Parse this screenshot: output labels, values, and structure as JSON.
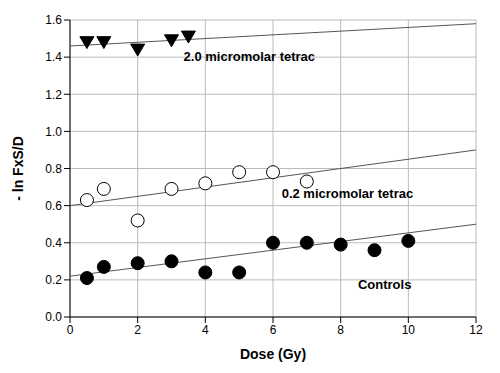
{
  "chart_data": {
    "type": "scatter",
    "x_label": "Dose (Gy)",
    "y_label": "- ln FxS/D",
    "xlim": [
      0,
      12
    ],
    "ylim": [
      0,
      1.6
    ],
    "xticks": [
      0,
      2,
      4,
      6,
      8,
      10,
      12
    ],
    "yticks": [
      {
        "value": 0,
        "label": "0.0"
      },
      {
        "value": 0.2,
        "label": "0.2"
      },
      {
        "value": 0.4,
        "label": "0.4"
      },
      {
        "value": 0.6,
        "label": "0.6"
      },
      {
        "value": 0.8,
        "label": "0.8"
      },
      {
        "value": 1,
        "label": "1.0"
      },
      {
        "value": 1.2,
        "label": "1.2"
      },
      {
        "value": 1.4,
        "label": "1.4"
      },
      {
        "value": 1.6,
        "label": "1.6"
      }
    ],
    "grid": true,
    "series": [
      {
        "name": "2.0 micromolar tetrac",
        "color": "#000000",
        "marker": "triangle-down",
        "x": [
          0.5,
          1,
          2,
          3,
          3.5
        ],
        "values": [
          1.48,
          1.48,
          1.44,
          1.49,
          1.51
        ],
        "trend": {
          "color": "#555555",
          "x": [
            0,
            12
          ],
          "values": [
            1.46,
            1.58
          ]
        }
      },
      {
        "name": "0.2 micromolar tetrac",
        "color": "#000000",
        "marker": "circle-open",
        "x": [
          0.5,
          1,
          2,
          3,
          4,
          5,
          6,
          7
        ],
        "values": [
          0.63,
          0.69,
          0.52,
          0.69,
          0.72,
          0.78,
          0.78,
          0.73
        ],
        "trend": {
          "color": "#555555",
          "x": [
            0,
            12
          ],
          "values": [
            0.6,
            0.9
          ]
        }
      },
      {
        "name": "Controls",
        "color": "#000000",
        "marker": "circle",
        "x": [
          0.5,
          1,
          2,
          3,
          4,
          5,
          6,
          7,
          8,
          9,
          10
        ],
        "values": [
          0.21,
          0.27,
          0.29,
          0.3,
          0.24,
          0.24,
          0.4,
          0.4,
          0.39,
          0.36,
          0.41
        ],
        "trend": {
          "color": "#555555",
          "x": [
            0,
            12
          ],
          "values": [
            0.22,
            0.5
          ]
        }
      }
    ],
    "annotations": [
      {
        "text": "2.0 micromolar tetrac",
        "x": 5.3,
        "y": 1.4
      },
      {
        "text": "0.2 micromolar tetrac",
        "x": 8.2,
        "y": 0.66
      },
      {
        "text": "Controls",
        "x": 9.3,
        "y": 0.17
      }
    ]
  }
}
